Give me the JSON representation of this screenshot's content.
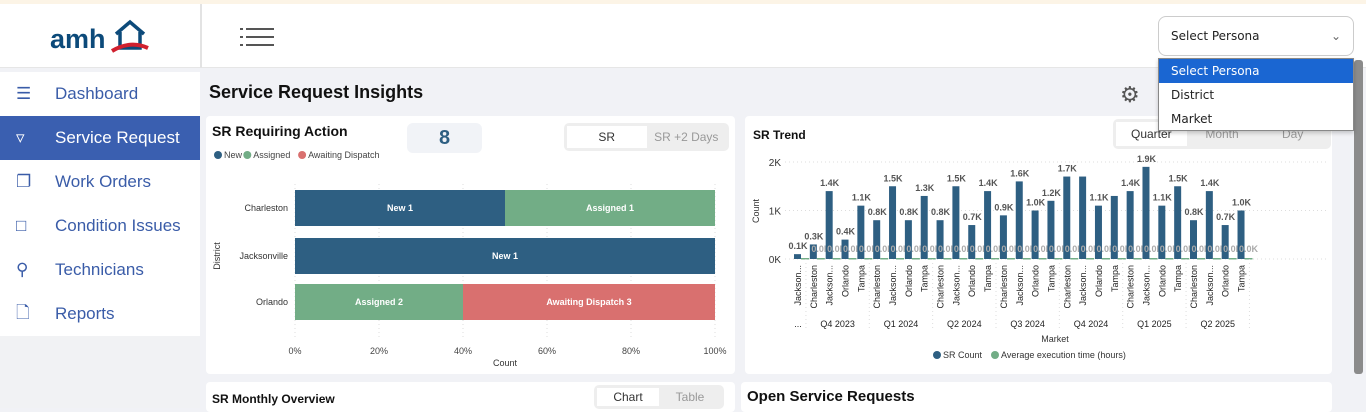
{
  "header": {
    "logo": "amh",
    "persona_select": {
      "value": "Select Persona",
      "options": [
        "Select Persona",
        "District",
        "Market"
      ]
    }
  },
  "sidebar": {
    "items": [
      {
        "label": "Dashboard",
        "icon": "database-icon"
      },
      {
        "label": "Service Request",
        "icon": "filter-icon"
      },
      {
        "label": "Work Orders",
        "icon": "copy-icon"
      },
      {
        "label": "Condition Issues",
        "icon": "edit-x-icon"
      },
      {
        "label": "Technicians",
        "icon": "user-plus-icon"
      },
      {
        "label": "Reports",
        "icon": "file-icon"
      }
    ]
  },
  "page": {
    "title": "Service Request Insights"
  },
  "sr_action": {
    "title": "SR Requiring Action",
    "count": "8",
    "tabs": [
      "SR",
      "SR +2 Days"
    ]
  },
  "sr_trend": {
    "title": "SR Trend",
    "tabs": [
      "Quarter",
      "Month",
      "Day"
    ]
  },
  "monthly": {
    "title": "SR Monthly Overview",
    "tabs": [
      "Chart",
      "Table"
    ]
  },
  "open": {
    "title": "Open Service Requests"
  },
  "colors": {
    "new": "#2e5f82",
    "assigned": "#72ad86",
    "awaiting": "#d9706f",
    "accent": "#3a5fb0"
  },
  "chart_data": [
    {
      "type": "bar",
      "orientation": "horizontal",
      "stacked": "percent",
      "title": "SR Requiring Action",
      "xlabel": "Count",
      "ylabel": "District",
      "legend": [
        "New",
        "Assigned",
        "Awaiting Dispatch"
      ],
      "legend_position": "top-left",
      "categories": [
        "Charleston",
        "Jacksonville",
        "Orlando"
      ],
      "series": [
        {
          "name": "New",
          "values": [
            1,
            1,
            0
          ]
        },
        {
          "name": "Assigned",
          "values": [
            1,
            0,
            2
          ]
        },
        {
          "name": "Awaiting Dispatch",
          "values": [
            0,
            0,
            3
          ]
        }
      ],
      "xticks": [
        "0%",
        "20%",
        "40%",
        "60%",
        "80%",
        "100%"
      ]
    },
    {
      "type": "bar",
      "title": "SR Trend",
      "xlabel": "Market",
      "ylabel": "Count",
      "ylim": [
        0,
        2000
      ],
      "yticks": [
        "0K",
        "1K",
        "2K"
      ],
      "legend": [
        "SR Count",
        "Average execution time (hours)"
      ],
      "legend_position": "bottom",
      "groups": [
        {
          "label": "...",
          "markets": [
            "Jackson..."
          ]
        },
        {
          "label": "Q4 2023",
          "markets": [
            "Charleston",
            "Jackson...",
            "Orlando",
            "Tampa"
          ]
        },
        {
          "label": "Q1 2024",
          "markets": [
            "Charleston",
            "Jackson...",
            "Orlando",
            "Tampa"
          ]
        },
        {
          "label": "Q2 2024",
          "markets": [
            "Charleston",
            "Jackson...",
            "Orlando",
            "Tampa"
          ]
        },
        {
          "label": "Q3 2024",
          "markets": [
            "Charleston",
            "Jackson...",
            "Orlando",
            "Tampa"
          ]
        },
        {
          "label": "Q4 2024",
          "markets": [
            "Charleston",
            "Jackson...",
            "Orlando",
            "Tampa"
          ]
        },
        {
          "label": "Q1 2025",
          "markets": [
            "Charleston",
            "Jackson...",
            "Orlando",
            "Tampa"
          ]
        },
        {
          "label": "Q2 2025",
          "markets": [
            "Charleston",
            "Jackson...",
            "Orlando",
            "Tampa"
          ]
        }
      ],
      "series": [
        {
          "name": "SR Count",
          "values": [
            100,
            300,
            1400,
            400,
            1100,
            800,
            1500,
            800,
            1300,
            800,
            1500,
            700,
            1400,
            900,
            1600,
            1000,
            1200,
            1700,
            1700,
            1100,
            1300,
            1400,
            1900,
            1100,
            1500,
            800,
            1400,
            700,
            1000
          ],
          "labels": [
            "0.1K",
            "0.3K",
            "1.4K",
            "0.4K",
            "1.1K",
            "0.8K",
            "1.5K",
            "0.8K",
            "1.3K",
            "0.8K",
            "1.5K",
            "0.7K",
            "1.4K",
            "0.9K",
            "1.6K",
            "1.0K",
            "1.2K",
            "1.7K",
            "",
            "1.1K",
            "",
            "1.4K",
            "1.9K",
            "1.1K",
            "1.5K",
            "0.8K",
            "1.4K",
            "0.7K",
            "1.0K"
          ]
        },
        {
          "name": "Average execution time (hours)",
          "values": [
            0,
            0,
            0,
            0,
            0,
            0,
            0,
            0,
            0,
            0,
            0,
            0,
            0,
            0,
            0,
            0,
            0,
            0,
            0,
            0,
            0,
            0,
            0,
            0,
            0,
            0,
            0,
            0,
            0
          ],
          "label": "0.0K"
        }
      ]
    }
  ]
}
